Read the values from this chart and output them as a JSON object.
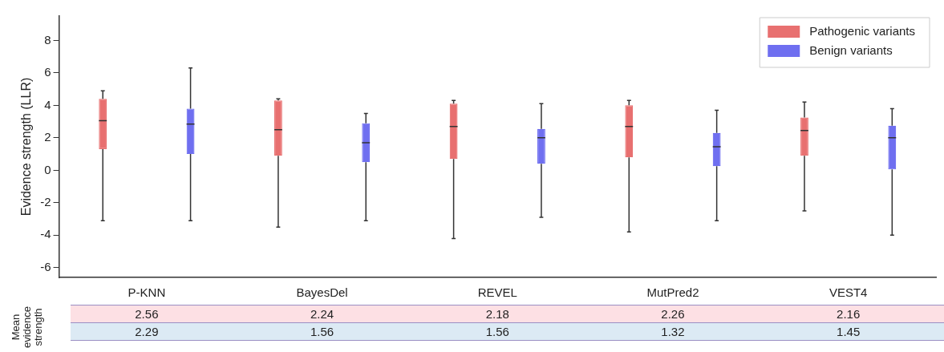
{
  "chart_data": {
    "type": "box",
    "ylabel": "Evidence strength (LLR)",
    "categories": [
      "P-KNN",
      "BayesDel",
      "REVEL",
      "MutPred2",
      "VEST4"
    ],
    "ylim": [
      -6.6,
      9.5
    ],
    "yticks": [
      -6,
      -4,
      -2,
      0,
      2,
      4,
      6,
      8
    ],
    "grid": false,
    "legend": "top right",
    "annotations": [
      "Mean evidence strength"
    ],
    "series": [
      {
        "name": "Pathogenic variants",
        "color": "#e87070",
        "value_labels": [
          "2.56",
          "2.24",
          "2.18",
          "2.26",
          "2.16"
        ],
        "boxes": [
          {
            "low": -3.1,
            "q1": 1.3,
            "median": 3.05,
            "q3": 4.4,
            "high": 4.9
          },
          {
            "low": -3.5,
            "q1": 0.9,
            "median": 2.5,
            "q3": 4.3,
            "high": 4.4
          },
          {
            "low": -4.2,
            "q1": 0.7,
            "median": 2.7,
            "q3": 4.1,
            "high": 4.3
          },
          {
            "low": -3.8,
            "q1": 0.8,
            "median": 2.7,
            "q3": 4.0,
            "high": 4.3
          },
          {
            "low": -2.5,
            "q1": 0.9,
            "median": 2.45,
            "q3": 3.25,
            "high": 4.2
          }
        ]
      },
      {
        "name": "Benign variants",
        "color": "#6f6ff0",
        "value_labels": [
          "2.29",
          "1.56",
          "1.56",
          "1.32",
          "1.45"
        ],
        "boxes": [
          {
            "low": -3.1,
            "q1": 1.0,
            "median": 2.85,
            "q3": 3.8,
            "high": 6.3
          },
          {
            "low": -3.1,
            "q1": 0.5,
            "median": 1.7,
            "q3": 2.9,
            "high": 3.5
          },
          {
            "low": -2.9,
            "q1": 0.4,
            "median": 2.0,
            "q3": 2.55,
            "high": 4.1
          },
          {
            "low": -3.1,
            "q1": 0.25,
            "median": 1.45,
            "q3": 2.3,
            "high": 3.7
          },
          {
            "low": -4.0,
            "q1": 0.05,
            "median": 2.0,
            "q3": 2.75,
            "high": 3.8
          }
        ]
      }
    ]
  }
}
